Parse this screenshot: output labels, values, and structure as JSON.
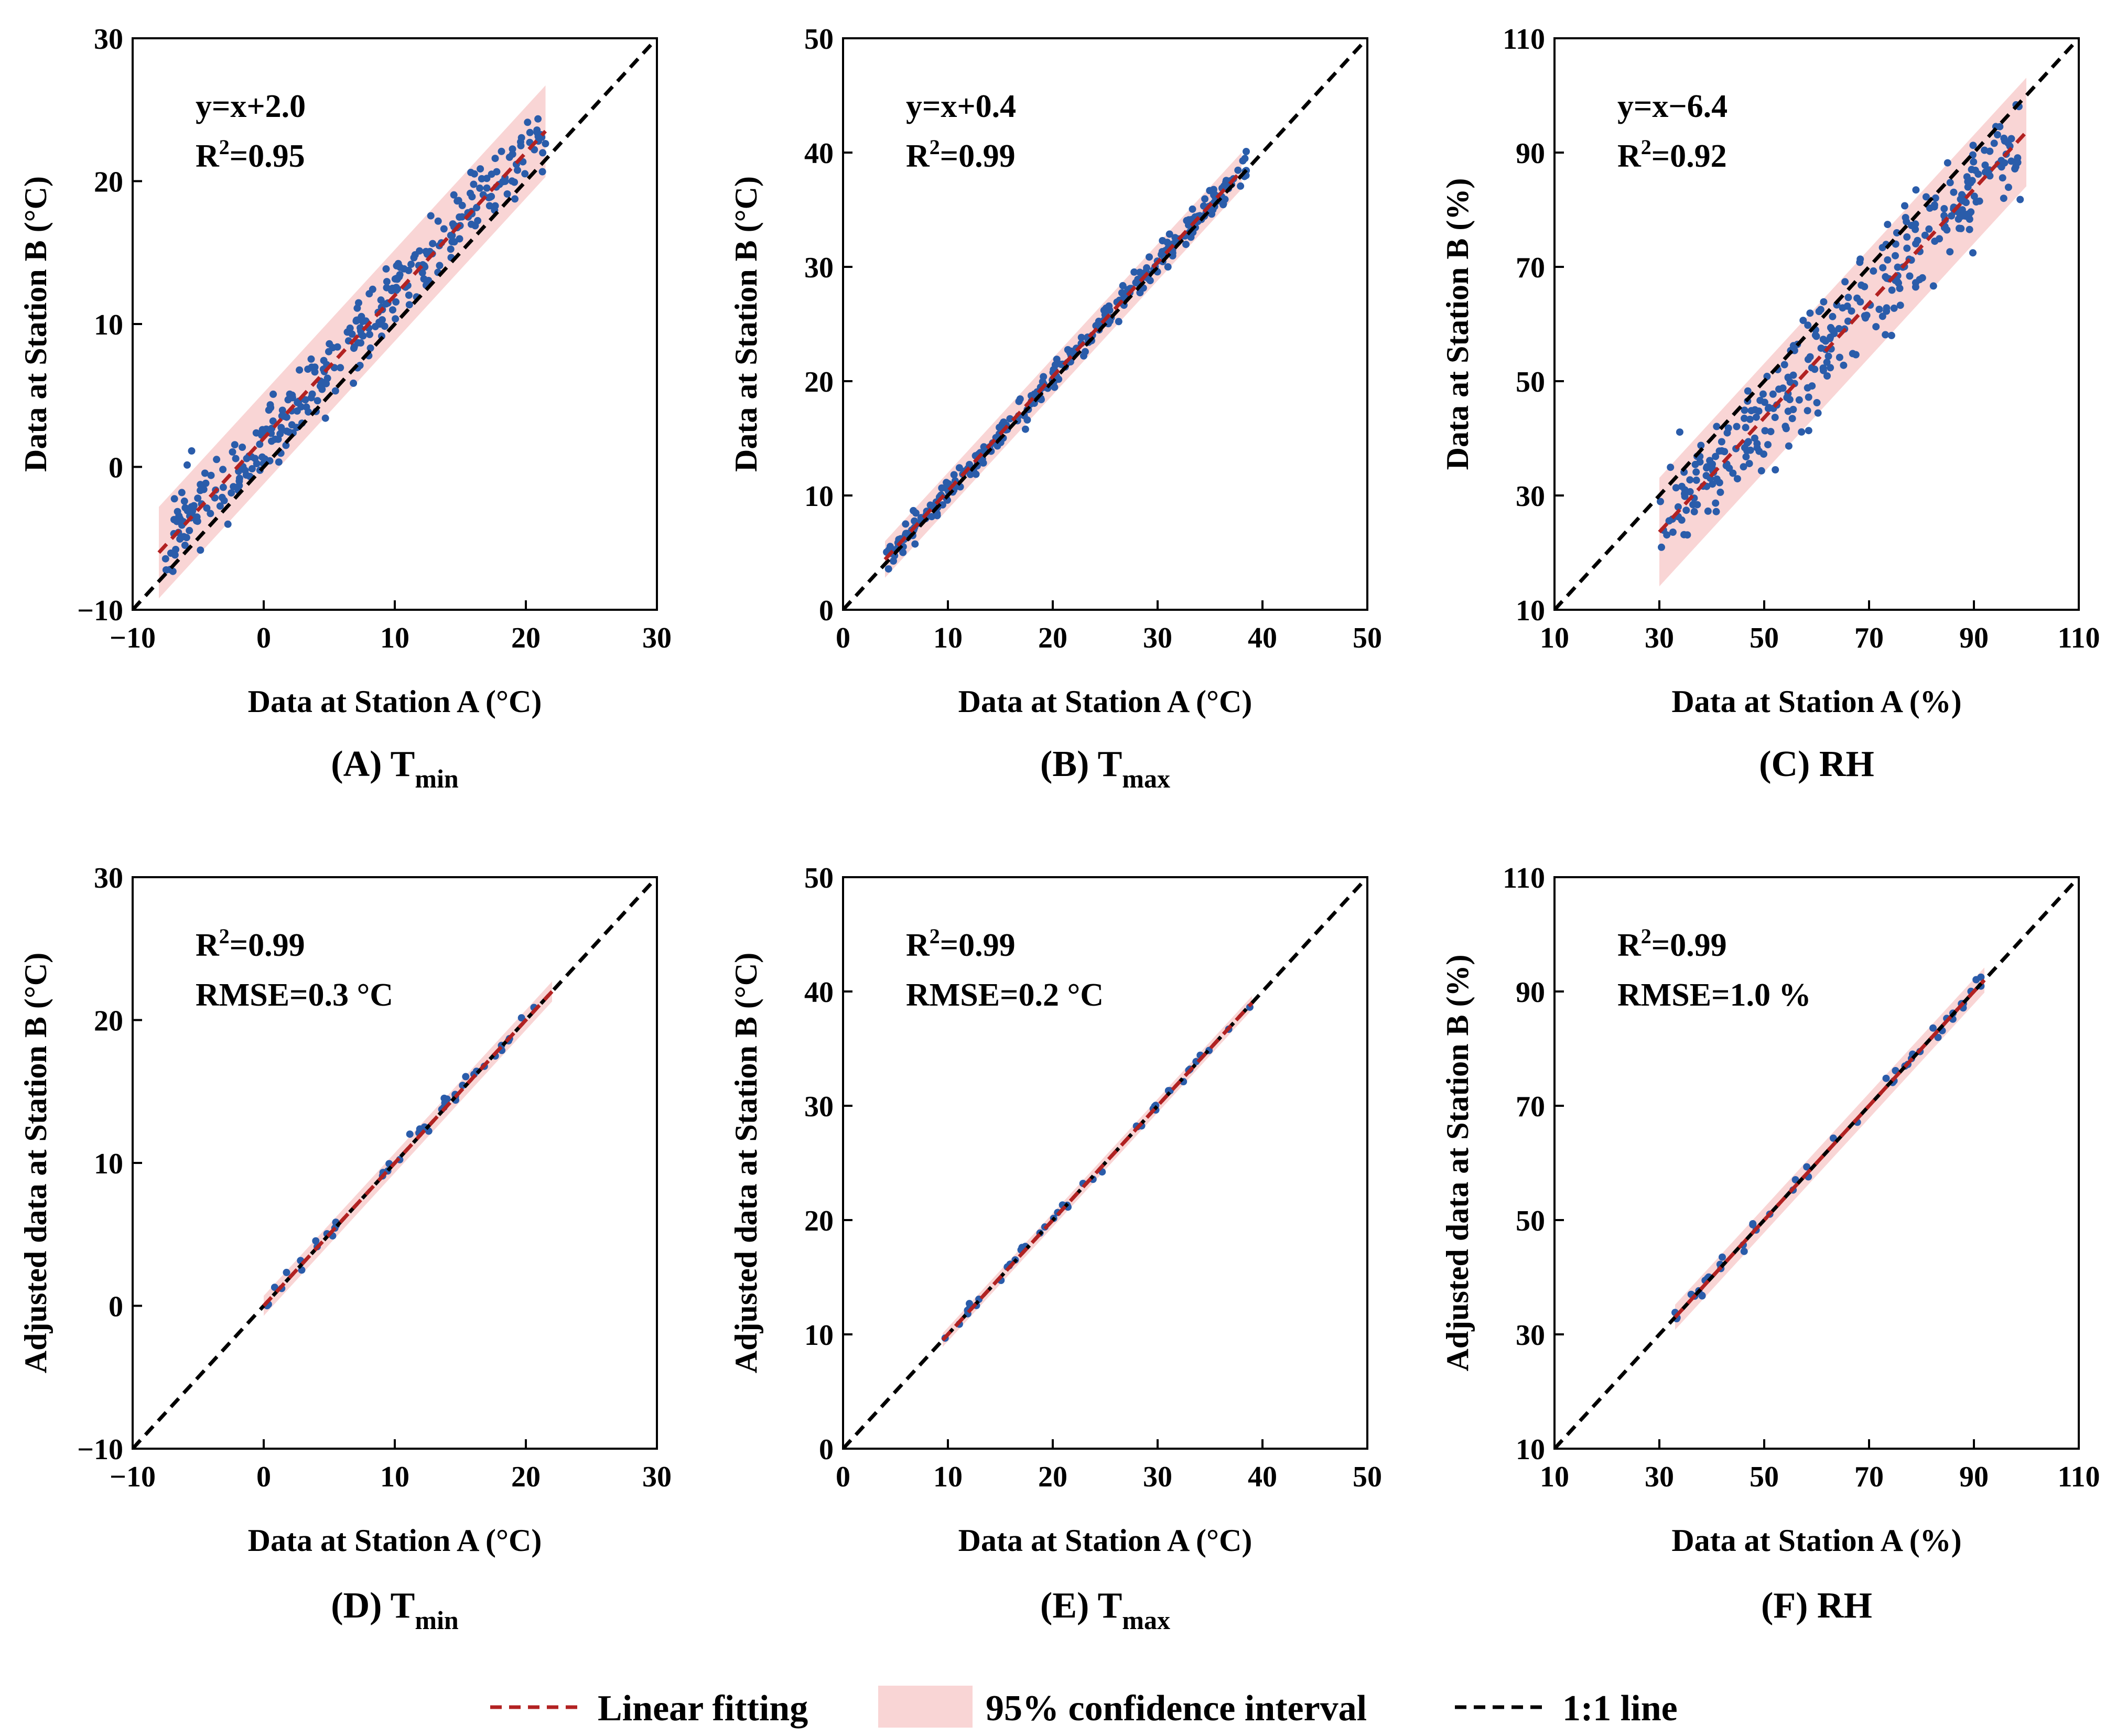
{
  "colors": {
    "points": "#2a5caa",
    "fit_line": "#b22222",
    "ci_fill": "#f9d5d5",
    "one_to_one": "#000000"
  },
  "legend": {
    "fit_label": "Linear fitting",
    "ci_label": "95% confidence interval",
    "one_to_one_label": "1:1 line"
  },
  "chart_data": [
    {
      "id": "A",
      "type": "scatter",
      "caption": "(A) T",
      "caption_sub": "min",
      "xlabel": "Data at Station A  (°C)",
      "ylabel": "Data at Station B (°C)",
      "xlim": [
        -10,
        30
      ],
      "ylim": [
        -10,
        30
      ],
      "xticks": [
        "−10",
        "0",
        "10",
        "20",
        "30"
      ],
      "yticks": [
        "−10",
        "0",
        "10",
        "20",
        "30"
      ],
      "annotation_line1": "y=x+2.0",
      "annotation_line2_prefix": "R",
      "annotation_line2_suffix": "=0.95",
      "fit": {
        "slope": 1,
        "intercept": 2.0,
        "x_range": [
          -8,
          21.5
        ]
      },
      "ci": {
        "half_width": 3.2
      },
      "points_gen": {
        "n": 330,
        "x_range": [
          -7.5,
          21.5
        ],
        "slope": 1,
        "intercept": 2.0,
        "noise": 1.3,
        "seed": 11
      }
    },
    {
      "id": "B",
      "type": "scatter",
      "caption": "(B) T",
      "caption_sub": "max",
      "xlabel": "Data at Station A  (°C)",
      "ylabel": "Data at Station B (°C)",
      "xlim": [
        0,
        50
      ],
      "ylim": [
        0,
        50
      ],
      "xticks": [
        "0",
        "10",
        "20",
        "30",
        "40",
        "50"
      ],
      "yticks": [
        "0",
        "10",
        "20",
        "30",
        "40",
        "50"
      ],
      "annotation_line1": "y=x+0.4",
      "annotation_line2_prefix": "R",
      "annotation_line2_suffix": "=0.99",
      "fit": {
        "slope": 1,
        "intercept": 0.4,
        "x_range": [
          4,
          38
        ]
      },
      "ci": {
        "half_width": 1.6
      },
      "points_gen": {
        "n": 330,
        "x_range": [
          4,
          38.5
        ],
        "slope": 1,
        "intercept": 0.4,
        "noise": 0.55,
        "seed": 23
      }
    },
    {
      "id": "C",
      "type": "scatter",
      "caption": "(C) RH",
      "caption_sub": "",
      "xlabel": "Data at Station A (%)",
      "ylabel": "Data at Station B (%)",
      "xlim": [
        10,
        110
      ],
      "ylim": [
        10,
        110
      ],
      "xticks": [
        "10",
        "30",
        "50",
        "70",
        "90",
        "110"
      ],
      "yticks": [
        "10",
        "30",
        "50",
        "70",
        "90",
        "110"
      ],
      "annotation_line1": "y=x−6.4",
      "annotation_line2_prefix": "R",
      "annotation_line2_suffix": "=0.92",
      "fit": {
        "slope": 1,
        "intercept": -6.4,
        "x_range": [
          30,
          100
        ]
      },
      "ci": {
        "half_width": 9.5
      },
      "points_gen": {
        "n": 330,
        "x_range": [
          30,
          99
        ],
        "slope": 1,
        "intercept": -6.4,
        "noise": 4.5,
        "seed": 37
      }
    },
    {
      "id": "D",
      "type": "scatter",
      "caption": "(D) T",
      "caption_sub": "min",
      "xlabel": "Data at Station A (°C)",
      "ylabel": "Adjusted data at Station B  (°C)",
      "xlim": [
        -10,
        30
      ],
      "ylim": [
        -10,
        30
      ],
      "xticks": [
        "−10",
        "0",
        "10",
        "20",
        "30"
      ],
      "yticks": [
        "−10",
        "0",
        "10",
        "20",
        "30"
      ],
      "annotation_line1_prefix": "R",
      "annotation_line1_suffix": "=0.99",
      "annotation_line2": "RMSE=0.3 °C",
      "fit": {
        "slope": 1,
        "intercept": 0,
        "x_range": [
          0,
          22
        ]
      },
      "ci": {
        "half_width": 0.7
      },
      "points_gen": {
        "n": 44,
        "x_range": [
          0,
          22
        ],
        "slope": 1,
        "intercept": 0.1,
        "noise": 0.3,
        "seed": 41
      }
    },
    {
      "id": "E",
      "type": "scatter",
      "caption": "(E) T",
      "caption_sub": "max",
      "xlabel": "Data at Station A (°C)",
      "ylabel": "Adjusted data at Station B  (°C)",
      "xlim": [
        0,
        50
      ],
      "ylim": [
        0,
        50
      ],
      "xticks": [
        "0",
        "10",
        "20",
        "30",
        "40",
        "50"
      ],
      "yticks": [
        "0",
        "10",
        "20",
        "30",
        "40",
        "50"
      ],
      "annotation_line1_prefix": "R",
      "annotation_line1_suffix": "=0.99",
      "annotation_line2": "RMSE=0.2 °C",
      "fit": {
        "slope": 1,
        "intercept": 0,
        "x_range": [
          9.5,
          39
        ]
      },
      "ci": {
        "half_width": 0.6
      },
      "points_gen": {
        "n": 44,
        "x_range": [
          9.5,
          39
        ],
        "slope": 1,
        "intercept": 0.1,
        "noise": 0.25,
        "seed": 53
      }
    },
    {
      "id": "F",
      "type": "scatter",
      "caption": "(F) RH",
      "caption_sub": "",
      "xlabel": "Data at Station A (%)",
      "ylabel": "Adjusted data at Station B  (%)",
      "xlim": [
        10,
        110
      ],
      "ylim": [
        10,
        110
      ],
      "xticks": [
        "10",
        "30",
        "50",
        "70",
        "90",
        "110"
      ],
      "yticks": [
        "10",
        "30",
        "50",
        "70",
        "90",
        "110"
      ],
      "annotation_line1_prefix": "R",
      "annotation_line1_suffix": "=0.99",
      "annotation_line2": "RMSE=1.0 %",
      "fit": {
        "slope": 1,
        "intercept": 0,
        "x_range": [
          33,
          92
        ]
      },
      "ci": {
        "half_width": 2.2
      },
      "points_gen": {
        "n": 48,
        "x_range": [
          33,
          92
        ],
        "slope": 1,
        "intercept": 0.2,
        "noise": 0.8,
        "seed": 67
      }
    }
  ]
}
